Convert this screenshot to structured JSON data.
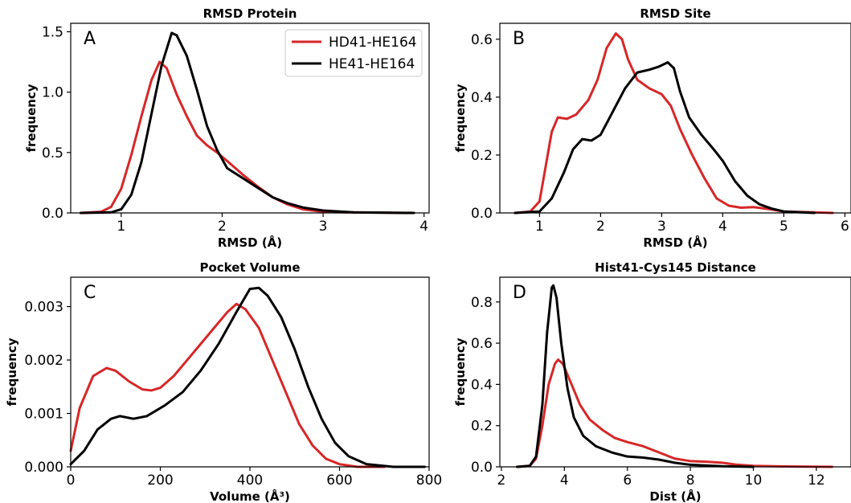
{
  "chart_data": [
    {
      "id": "A",
      "type": "line",
      "title": "RMSD Protein",
      "panel_letter": "A",
      "xlabel": "RMSD  (Å)",
      "ylabel": "frequency",
      "xlim": [
        0.5,
        4.05
      ],
      "ylim": [
        0,
        1.57
      ],
      "xticks": [
        1,
        2,
        3,
        4
      ],
      "xtick_labels": [
        "1",
        "2",
        "3",
        "4"
      ],
      "yticks": [
        0,
        0.5,
        1.0,
        1.5
      ],
      "ytick_labels": [
        "0.0",
        "0.5",
        "1.0",
        "1.5"
      ],
      "legend": {
        "position": "top-right"
      },
      "series": [
        {
          "name": "HD41-HE164",
          "color": "#d62728",
          "points": [
            [
              0.6,
              0
            ],
            [
              0.8,
              0.01
            ],
            [
              0.9,
              0.05
            ],
            [
              1.0,
              0.2
            ],
            [
              1.1,
              0.48
            ],
            [
              1.2,
              0.8
            ],
            [
              1.3,
              1.1
            ],
            [
              1.38,
              1.25
            ],
            [
              1.45,
              1.2
            ],
            [
              1.55,
              0.98
            ],
            [
              1.65,
              0.8
            ],
            [
              1.75,
              0.64
            ],
            [
              1.85,
              0.56
            ],
            [
              1.95,
              0.5
            ],
            [
              2.05,
              0.43
            ],
            [
              2.2,
              0.32
            ],
            [
              2.35,
              0.22
            ],
            [
              2.5,
              0.13
            ],
            [
              2.65,
              0.07
            ],
            [
              2.8,
              0.03
            ],
            [
              3.0,
              0.01
            ],
            [
              3.2,
              0.005
            ],
            [
              3.9,
              0
            ]
          ]
        },
        {
          "name": "HE41-HE164",
          "color": "#000000",
          "points": [
            [
              0.6,
              0
            ],
            [
              0.9,
              0.005
            ],
            [
              1.0,
              0.03
            ],
            [
              1.1,
              0.15
            ],
            [
              1.2,
              0.42
            ],
            [
              1.3,
              0.82
            ],
            [
              1.4,
              1.22
            ],
            [
              1.5,
              1.49
            ],
            [
              1.55,
              1.47
            ],
            [
              1.65,
              1.3
            ],
            [
              1.75,
              1.02
            ],
            [
              1.85,
              0.72
            ],
            [
              1.95,
              0.52
            ],
            [
              2.05,
              0.37
            ],
            [
              2.2,
              0.29
            ],
            [
              2.35,
              0.21
            ],
            [
              2.5,
              0.13
            ],
            [
              2.65,
              0.08
            ],
            [
              2.8,
              0.045
            ],
            [
              3.0,
              0.02
            ],
            [
              3.3,
              0.005
            ],
            [
              3.9,
              0
            ]
          ]
        }
      ]
    },
    {
      "id": "B",
      "type": "line",
      "title": "RMSD Site",
      "panel_letter": "B",
      "xlabel": "RMSD  (Å)",
      "ylabel": "frequency",
      "xlim": [
        0.35,
        6.1
      ],
      "ylim": [
        0,
        0.655
      ],
      "xticks": [
        1,
        2,
        3,
        4,
        5,
        6
      ],
      "xtick_labels": [
        "1",
        "2",
        "3",
        "4",
        "5",
        "6"
      ],
      "yticks": [
        0,
        0.2,
        0.4,
        0.6
      ],
      "ytick_labels": [
        "0.0",
        "0.2",
        "0.4",
        "0.6"
      ],
      "series": [
        {
          "name": "HD41-HE164",
          "color": "#d62728",
          "points": [
            [
              0.6,
              0
            ],
            [
              0.85,
              0.005
            ],
            [
              1.0,
              0.04
            ],
            [
              1.1,
              0.16
            ],
            [
              1.2,
              0.28
            ],
            [
              1.3,
              0.33
            ],
            [
              1.45,
              0.325
            ],
            [
              1.6,
              0.34
            ],
            [
              1.8,
              0.39
            ],
            [
              1.95,
              0.46
            ],
            [
              2.1,
              0.57
            ],
            [
              2.25,
              0.62
            ],
            [
              2.35,
              0.6
            ],
            [
              2.45,
              0.53
            ],
            [
              2.6,
              0.46
            ],
            [
              2.8,
              0.43
            ],
            [
              3.0,
              0.41
            ],
            [
              3.15,
              0.37
            ],
            [
              3.3,
              0.29
            ],
            [
              3.5,
              0.2
            ],
            [
              3.7,
              0.12
            ],
            [
              3.9,
              0.05
            ],
            [
              4.1,
              0.025
            ],
            [
              4.3,
              0.018
            ],
            [
              4.5,
              0.02
            ],
            [
              4.7,
              0.015
            ],
            [
              5.0,
              0.005
            ],
            [
              5.8,
              0
            ]
          ]
        },
        {
          "name": "HE41-HE164",
          "color": "#000000",
          "points": [
            [
              0.6,
              0
            ],
            [
              1.0,
              0.005
            ],
            [
              1.2,
              0.05
            ],
            [
              1.4,
              0.14
            ],
            [
              1.55,
              0.22
            ],
            [
              1.7,
              0.255
            ],
            [
              1.85,
              0.25
            ],
            [
              2.0,
              0.27
            ],
            [
              2.2,
              0.35
            ],
            [
              2.4,
              0.43
            ],
            [
              2.6,
              0.485
            ],
            [
              2.8,
              0.495
            ],
            [
              2.95,
              0.505
            ],
            [
              3.1,
              0.52
            ],
            [
              3.2,
              0.5
            ],
            [
              3.3,
              0.42
            ],
            [
              3.45,
              0.33
            ],
            [
              3.65,
              0.27
            ],
            [
              3.85,
              0.22
            ],
            [
              4.0,
              0.18
            ],
            [
              4.2,
              0.11
            ],
            [
              4.4,
              0.06
            ],
            [
              4.6,
              0.03
            ],
            [
              4.8,
              0.015
            ],
            [
              5.0,
              0.005
            ],
            [
              5.5,
              0
            ]
          ]
        }
      ]
    },
    {
      "id": "C",
      "type": "line",
      "title": "Pocket Volume",
      "panel_letter": "C",
      "xlabel": "Volume  (Å³)",
      "ylabel": "frequency",
      "xlim": [
        0,
        800
      ],
      "ylim": [
        0,
        0.00355
      ],
      "xticks": [
        0,
        200,
        400,
        600,
        800
      ],
      "xtick_labels": [
        "0",
        "200",
        "400",
        "600",
        "800"
      ],
      "yticks": [
        0,
        0.001,
        0.002,
        0.003
      ],
      "ytick_labels": [
        "0.000",
        "0.001",
        "0.002",
        "0.003"
      ],
      "series": [
        {
          "name": "HD41-HE164",
          "color": "#d62728",
          "points": [
            [
              0,
              0.0003
            ],
            [
              20,
              0.0011
            ],
            [
              50,
              0.0017
            ],
            [
              80,
              0.00185
            ],
            [
              100,
              0.0018
            ],
            [
              130,
              0.0016
            ],
            [
              160,
              0.00145
            ],
            [
              180,
              0.00143
            ],
            [
              200,
              0.00148
            ],
            [
              230,
              0.0017
            ],
            [
              260,
              0.002
            ],
            [
              290,
              0.0023
            ],
            [
              320,
              0.0026
            ],
            [
              350,
              0.0029
            ],
            [
              370,
              0.00305
            ],
            [
              390,
              0.00295
            ],
            [
              420,
              0.0026
            ],
            [
              450,
              0.002
            ],
            [
              480,
              0.0014
            ],
            [
              510,
              0.0008
            ],
            [
              540,
              0.0004
            ],
            [
              570,
              0.00015
            ],
            [
              600,
              5e-05
            ],
            [
              640,
              0
            ],
            [
              700,
              0
            ]
          ]
        },
        {
          "name": "HE41-HE164",
          "color": "#000000",
          "points": [
            [
              0,
              5e-05
            ],
            [
              30,
              0.0003
            ],
            [
              60,
              0.0007
            ],
            [
              90,
              0.0009
            ],
            [
              110,
              0.00095
            ],
            [
              140,
              0.0009
            ],
            [
              170,
              0.00095
            ],
            [
              210,
              0.00115
            ],
            [
              250,
              0.0014
            ],
            [
              290,
              0.0018
            ],
            [
              330,
              0.0023
            ],
            [
              370,
              0.0029
            ],
            [
              400,
              0.00333
            ],
            [
              420,
              0.00335
            ],
            [
              440,
              0.0032
            ],
            [
              470,
              0.0028
            ],
            [
              500,
              0.0022
            ],
            [
              530,
              0.0015
            ],
            [
              560,
              0.0009
            ],
            [
              590,
              0.00045
            ],
            [
              620,
              0.0002
            ],
            [
              660,
              5e-05
            ],
            [
              720,
              0
            ],
            [
              790,
              0
            ]
          ]
        }
      ]
    },
    {
      "id": "D",
      "type": "line",
      "title": "Hist41-Cys145 Distance",
      "panel_letter": "D",
      "xlabel": "Dist  (Å)",
      "ylabel": "frequency",
      "xlim": [
        1.95,
        13.1
      ],
      "ylim": [
        0,
        0.92
      ],
      "xticks": [
        2,
        4,
        6,
        8,
        10,
        12
      ],
      "xtick_labels": [
        "2",
        "4",
        "6",
        "8",
        "10",
        "12"
      ],
      "yticks": [
        0,
        0.2,
        0.4,
        0.6,
        0.8
      ],
      "ytick_labels": [
        "0.0",
        "0.2",
        "0.4",
        "0.6",
        "0.8"
      ],
      "series": [
        {
          "name": "HD41-HE164",
          "color": "#d62728",
          "points": [
            [
              2.5,
              0
            ],
            [
              2.9,
              0.005
            ],
            [
              3.1,
              0.04
            ],
            [
              3.3,
              0.2
            ],
            [
              3.5,
              0.4
            ],
            [
              3.7,
              0.5
            ],
            [
              3.8,
              0.52
            ],
            [
              3.95,
              0.5
            ],
            [
              4.2,
              0.41
            ],
            [
              4.5,
              0.3
            ],
            [
              4.8,
              0.23
            ],
            [
              5.2,
              0.18
            ],
            [
              5.6,
              0.14
            ],
            [
              6.0,
              0.12
            ],
            [
              6.5,
              0.1
            ],
            [
              7.0,
              0.07
            ],
            [
              7.5,
              0.04
            ],
            [
              8.0,
              0.028
            ],
            [
              8.5,
              0.025
            ],
            [
              9.0,
              0.02
            ],
            [
              9.5,
              0.01
            ],
            [
              10,
              0.005
            ],
            [
              11,
              0.002
            ],
            [
              12.5,
              0
            ]
          ]
        },
        {
          "name": "HE41-HE164",
          "color": "#000000",
          "points": [
            [
              2.5,
              0
            ],
            [
              2.9,
              0.005
            ],
            [
              3.1,
              0.05
            ],
            [
              3.3,
              0.3
            ],
            [
              3.45,
              0.65
            ],
            [
              3.6,
              0.87
            ],
            [
              3.65,
              0.88
            ],
            [
              3.75,
              0.82
            ],
            [
              3.9,
              0.6
            ],
            [
              4.1,
              0.38
            ],
            [
              4.3,
              0.24
            ],
            [
              4.6,
              0.15
            ],
            [
              5.0,
              0.1
            ],
            [
              5.5,
              0.07
            ],
            [
              6.0,
              0.05
            ],
            [
              6.5,
              0.045
            ],
            [
              7.0,
              0.035
            ],
            [
              7.5,
              0.02
            ],
            [
              8.0,
              0.01
            ],
            [
              9.0,
              0.003
            ],
            [
              10,
              0
            ]
          ]
        }
      ]
    }
  ]
}
